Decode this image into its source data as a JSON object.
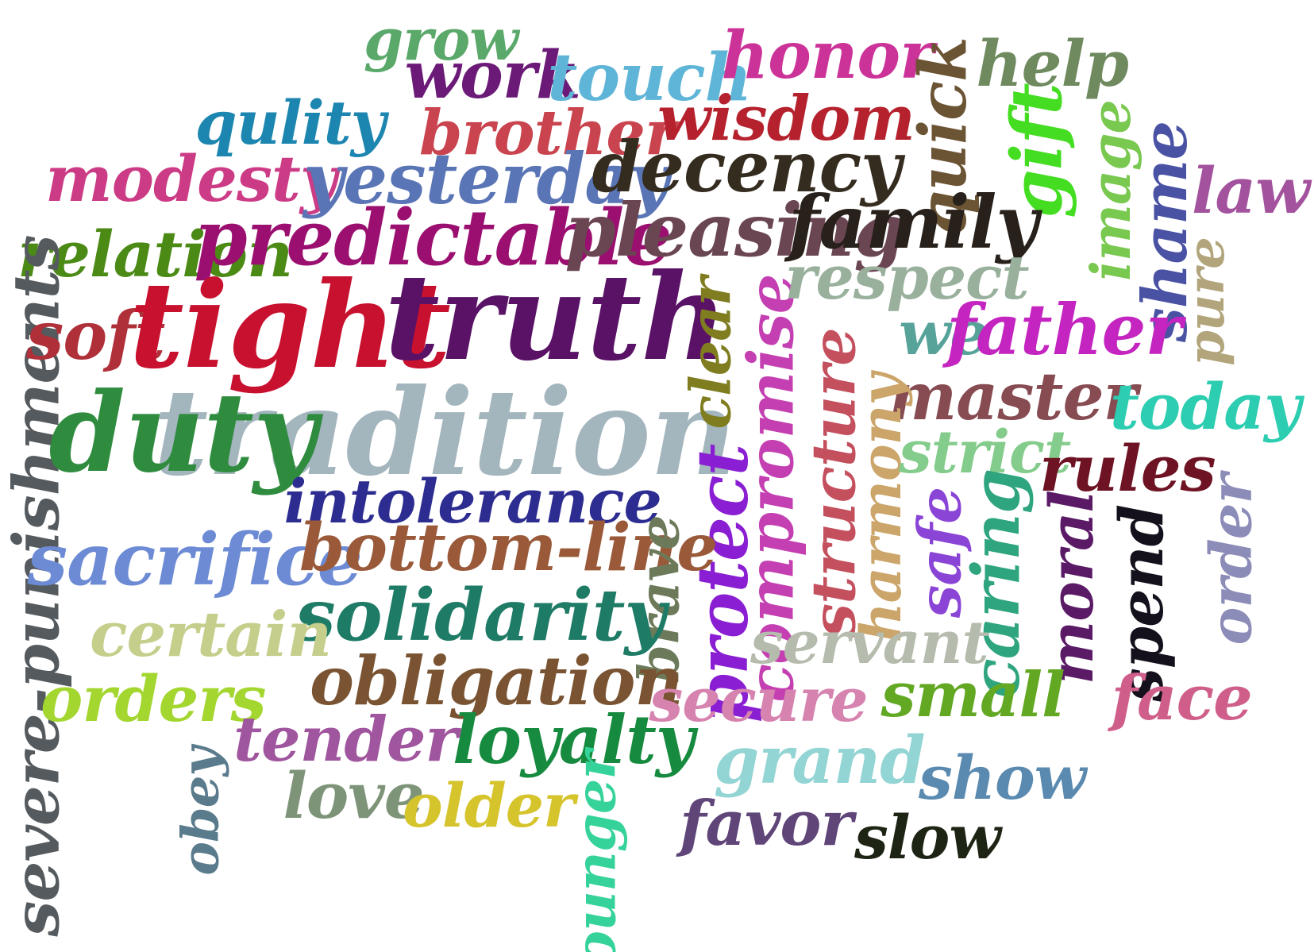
{
  "words": [
    {
      "text": "tradition",
      "color": "#a3b5bd"
    },
    {
      "text": "grow",
      "color": "#5aa86a"
    },
    {
      "text": "work",
      "color": "#6c1a78"
    },
    {
      "text": "touch",
      "color": "#5fb5d8"
    },
    {
      "text": "honor",
      "color": "#cc3399"
    },
    {
      "text": "help",
      "color": "#6f8a5f"
    },
    {
      "text": "quick",
      "color": "#6b5434"
    },
    {
      "text": "qulity",
      "color": "#1d86b0"
    },
    {
      "text": "brother",
      "color": "#c9444f"
    },
    {
      "text": "wisdom",
      "color": "#b5222d"
    },
    {
      "text": "gift",
      "color": "#44dd22"
    },
    {
      "text": "image",
      "color": "#79c84f"
    },
    {
      "text": "shame",
      "color": "#4a52a4"
    },
    {
      "text": "law",
      "color": "#a3529e"
    },
    {
      "text": "modesty",
      "color": "#cc3b85"
    },
    {
      "text": "yesterday",
      "color": "#5a75b6"
    },
    {
      "text": "decency",
      "color": "#352c20"
    },
    {
      "text": "relation",
      "color": "#4c8a16"
    },
    {
      "text": "predictable",
      "color": "#9a0f6f"
    },
    {
      "text": "pleasing",
      "color": "#6a4552"
    },
    {
      "text": "family",
      "color": "#28201a"
    },
    {
      "text": "pure",
      "color": "#b2a57c"
    },
    {
      "text": "severe-punishments",
      "color": "#555a5e"
    },
    {
      "text": "soft",
      "color": "#b0303a"
    },
    {
      "text": "tight",
      "color": "#c8102f"
    },
    {
      "text": "truth",
      "color": "#591266"
    },
    {
      "text": "clear",
      "color": "#7f7d1f"
    },
    {
      "text": "compromise",
      "color": "#c43fb1"
    },
    {
      "text": "respect",
      "color": "#98b09c"
    },
    {
      "text": "we",
      "color": "#57a39a"
    },
    {
      "text": "father",
      "color": "#c424c0"
    },
    {
      "text": "master",
      "color": "#874b52"
    },
    {
      "text": "today",
      "color": "#2ccdb0"
    },
    {
      "text": "duty",
      "color": "#2f8c3f"
    },
    {
      "text": "structure",
      "color": "#c4505e"
    },
    {
      "text": "harmony",
      "color": "#cba569"
    },
    {
      "text": "strict",
      "color": "#84cc8c"
    },
    {
      "text": "rules",
      "color": "#6e1323"
    },
    {
      "text": "intolerance",
      "color": "#2d2d91"
    },
    {
      "text": "protect",
      "color": "#8a1ed2"
    },
    {
      "text": "safe",
      "color": "#8a45d6"
    },
    {
      "text": "caring",
      "color": "#2ea57f"
    },
    {
      "text": "moral",
      "color": "#5b1a66"
    },
    {
      "text": "spend",
      "color": "#14101c"
    },
    {
      "text": "order",
      "color": "#8c8cb8"
    },
    {
      "text": "sacrifice",
      "color": "#6c8bd4"
    },
    {
      "text": "bottom-line",
      "color": "#9a5a3a"
    },
    {
      "text": "brave",
      "color": "#6d7a5a"
    },
    {
      "text": "solidarity",
      "color": "#1e7b66"
    },
    {
      "text": "certain",
      "color": "#c5ce8a"
    },
    {
      "text": "servant",
      "color": "#b5bcad"
    },
    {
      "text": "obligation",
      "color": "#7a5432"
    },
    {
      "text": "small",
      "color": "#62a823"
    },
    {
      "text": "face",
      "color": "#cf5f8a"
    },
    {
      "text": "orders",
      "color": "#a4d630"
    },
    {
      "text": "secure",
      "color": "#d683b0"
    },
    {
      "text": "tender",
      "color": "#a0569e"
    },
    {
      "text": "loyalty",
      "color": "#168a3e"
    },
    {
      "text": "grand",
      "color": "#93d4d4"
    },
    {
      "text": "show",
      "color": "#5a8ab0"
    },
    {
      "text": "obey",
      "color": "#5a7b8c"
    },
    {
      "text": "love",
      "color": "#7e9478"
    },
    {
      "text": "older",
      "color": "#d6c42c"
    },
    {
      "text": "younger",
      "color": "#35d39a"
    },
    {
      "text": "favor",
      "color": "#5f4578"
    },
    {
      "text": "slow",
      "color": "#1e2414"
    }
  ]
}
